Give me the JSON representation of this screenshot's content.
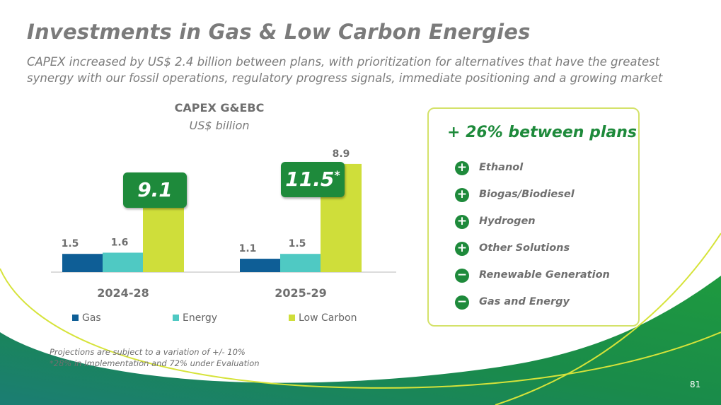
{
  "slide": {
    "title": "Investments in Gas & Low Carbon Energies",
    "subtitle": "CAPEX increased by US$ 2.4 billion between plans, with prioritization for alternatives that have the greatest synergy with our fossil operations, regulatory progress signals, immediate positioning and a growing market",
    "page_number": "81",
    "notes": [
      "Projections are subject to a variation of +/- 10%",
      "*28% in Implementation and 72% under Evaluation"
    ]
  },
  "chart_data": {
    "type": "bar",
    "title": "CAPEX G&EBC",
    "subtitle": "US$ billion",
    "categories": [
      "2024-28",
      "2025-29"
    ],
    "series": [
      {
        "name": "Gas",
        "values": [
          1.5,
          1.1
        ],
        "labels": [
          "1.5",
          "1.1"
        ]
      },
      {
        "name": "Energy",
        "values": [
          1.6,
          1.5
        ],
        "labels": [
          "1.6",
          "1.5"
        ]
      },
      {
        "name": "Low Carbon",
        "values": [
          6.0,
          8.9
        ],
        "labels": [
          "6.0",
          "8.9"
        ]
      }
    ],
    "totals": [
      "9.1",
      "11.5"
    ],
    "total_marker": "*",
    "ylim": [
      0,
      10
    ],
    "grid": false,
    "legend": "bottom",
    "colors": [
      "#0e5e96",
      "#4fc9c3",
      "#cfde3a"
    ]
  },
  "panel": {
    "title": "+ 26% between plans",
    "items": [
      {
        "sign": "+",
        "label": "Ethanol"
      },
      {
        "sign": "+",
        "label": "Biogas/Biodiesel"
      },
      {
        "sign": "+",
        "label": "Hydrogen"
      },
      {
        "sign": "+",
        "label": "Other Solutions"
      },
      {
        "sign": "−",
        "label": "Renewable Generation"
      },
      {
        "sign": "−",
        "label": "Gas and Energy"
      }
    ]
  }
}
